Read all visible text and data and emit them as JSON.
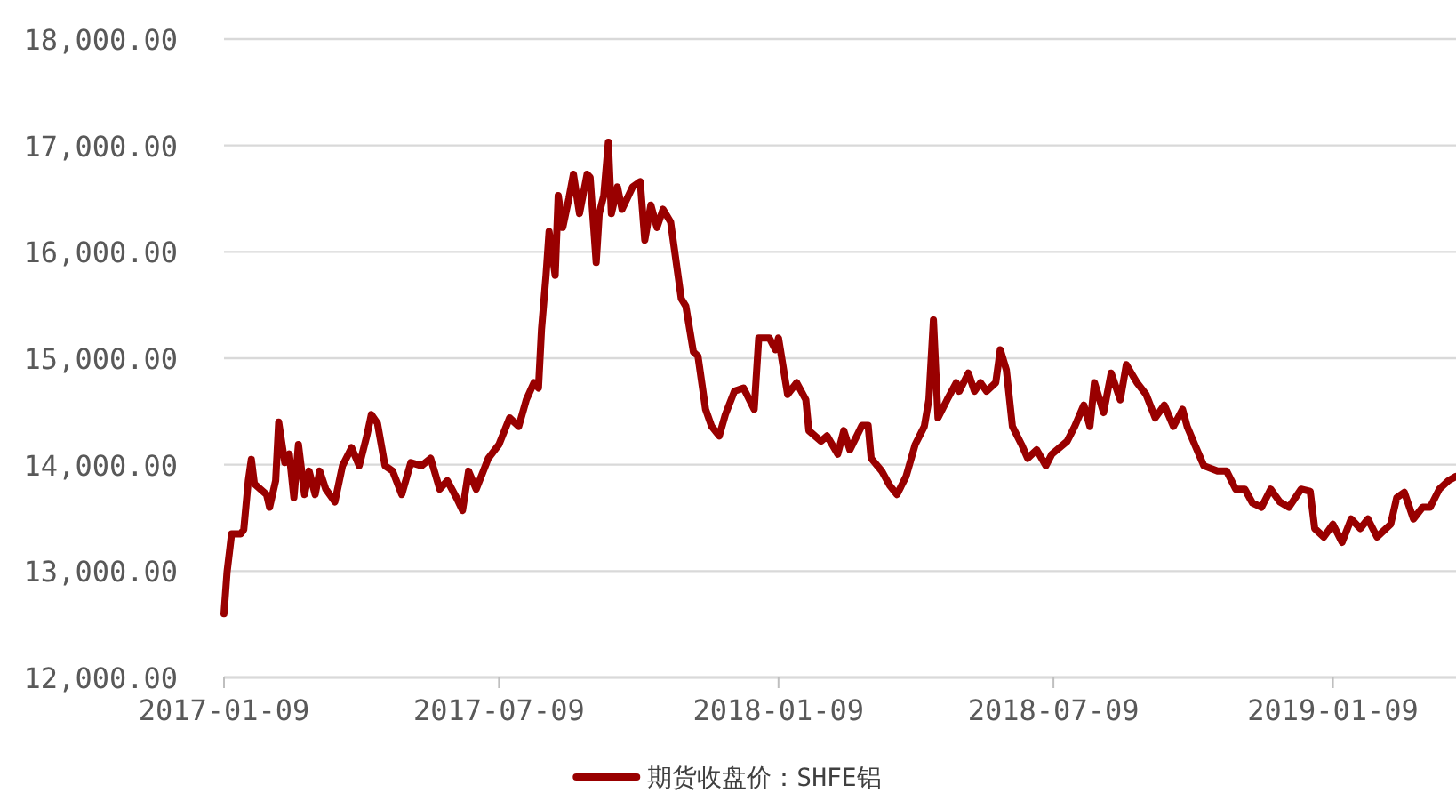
{
  "chart_data": {
    "type": "line",
    "x": [
      "2017-01-09",
      "2017-01-11",
      "2017-01-14",
      "2017-01-20",
      "2017-01-22",
      "2017-01-25",
      "2017-01-27",
      "2017-01-29",
      "2017-02-06",
      "2017-02-08",
      "2017-02-12",
      "2017-02-14",
      "2017-02-18",
      "2017-02-21",
      "2017-02-24",
      "2017-02-27",
      "2017-03-03",
      "2017-03-06",
      "2017-03-10",
      "2017-03-13",
      "2017-03-17",
      "2017-03-23",
      "2017-03-28",
      "2017-04-03",
      "2017-04-08",
      "2017-04-13",
      "2017-04-16",
      "2017-04-20",
      "2017-04-25",
      "2017-04-30",
      "2017-05-06",
      "2017-05-12",
      "2017-05-19",
      "2017-05-25",
      "2017-05-31",
      "2017-06-05",
      "2017-06-11",
      "2017-06-15",
      "2017-06-19",
      "2017-06-24",
      "2017-07-02",
      "2017-07-09",
      "2017-07-16",
      "2017-07-22",
      "2017-07-27",
      "2017-08-01",
      "2017-08-04",
      "2017-08-06",
      "2017-08-09",
      "2017-08-11",
      "2017-08-15",
      "2017-08-17",
      "2017-08-20",
      "2017-08-24",
      "2017-08-27",
      "2017-08-31",
      "2017-09-05",
      "2017-09-07",
      "2017-09-11",
      "2017-09-13",
      "2017-09-16",
      "2017-09-19",
      "2017-09-21",
      "2017-09-25",
      "2017-09-28",
      "2017-10-05",
      "2017-10-10",
      "2017-10-13",
      "2017-10-17",
      "2017-10-21",
      "2017-10-25",
      "2017-10-30",
      "2017-11-06",
      "2017-11-09",
      "2017-11-14",
      "2017-11-17",
      "2017-11-22",
      "2017-11-26",
      "2017-12-01",
      "2017-12-05",
      "2017-12-11",
      "2017-12-17",
      "2017-12-24",
      "2017-12-27",
      "2018-01-03",
      "2018-01-07",
      "2018-01-09",
      "2018-01-15",
      "2018-01-21",
      "2018-01-27",
      "2018-01-29",
      "2018-02-06",
      "2018-02-10",
      "2018-02-17",
      "2018-02-21",
      "2018-02-25",
      "2018-03-05",
      "2018-03-09",
      "2018-03-11",
      "2018-03-18",
      "2018-03-23",
      "2018-03-28",
      "2018-04-03",
      "2018-04-09",
      "2018-04-15",
      "2018-04-18",
      "2018-04-21",
      "2018-04-24",
      "2018-04-30",
      "2018-05-06",
      "2018-05-08",
      "2018-05-14",
      "2018-05-18",
      "2018-05-22",
      "2018-05-26",
      "2018-06-01",
      "2018-06-04",
      "2018-06-08",
      "2018-06-12",
      "2018-06-18",
      "2018-06-22",
      "2018-06-28",
      "2018-07-04",
      "2018-07-08",
      "2018-07-18",
      "2018-07-23",
      "2018-07-29",
      "2018-08-02",
      "2018-08-05",
      "2018-08-11",
      "2018-08-16",
      "2018-08-22",
      "2018-08-26",
      "2018-09-02",
      "2018-09-08",
      "2018-09-14",
      "2018-09-20",
      "2018-09-26",
      "2018-10-02",
      "2018-10-05",
      "2018-10-10",
      "2018-10-16",
      "2018-10-25",
      "2018-10-31",
      "2018-11-06",
      "2018-11-12",
      "2018-11-17",
      "2018-11-23",
      "2018-11-29",
      "2018-12-05",
      "2018-12-11",
      "2018-12-19",
      "2018-12-25",
      "2018-12-28",
      "2019-01-03",
      "2019-01-09",
      "2019-01-15",
      "2019-01-21",
      "2019-01-27",
      "2019-02-01",
      "2019-02-07",
      "2019-02-16",
      "2019-02-20",
      "2019-02-25",
      "2019-03-03",
      "2019-03-09",
      "2019-03-14",
      "2019-03-20",
      "2019-03-26",
      "2019-03-31"
    ],
    "series": [
      {
        "name": "期货收盘价：SHFE铝",
        "color": "#990000",
        "values": [
          12600,
          12990,
          13350,
          13350,
          13390,
          13850,
          14050,
          13820,
          13720,
          13600,
          13850,
          14400,
          14020,
          14100,
          13690,
          14190,
          13720,
          13940,
          13720,
          13940,
          13770,
          13650,
          13990,
          14160,
          13990,
          14270,
          14470,
          14390,
          13990,
          13940,
          13720,
          14020,
          13990,
          14060,
          13770,
          13850,
          13690,
          13570,
          13940,
          13770,
          14060,
          14190,
          14440,
          14360,
          14610,
          14770,
          14720,
          15270,
          15780,
          16190,
          15780,
          16530,
          16230,
          16500,
          16730,
          16360,
          16730,
          16700,
          15900,
          16360,
          16530,
          17030,
          16360,
          16610,
          16400,
          16610,
          16660,
          16110,
          16440,
          16230,
          16400,
          16280,
          15560,
          15490,
          15060,
          15020,
          14520,
          14360,
          14270,
          14470,
          14690,
          14720,
          14520,
          15190,
          15190,
          15080,
          15190,
          14660,
          14770,
          14610,
          14320,
          14220,
          14270,
          14100,
          14320,
          14140,
          14370,
          14370,
          14060,
          13940,
          13810,
          13720,
          13890,
          14190,
          14360,
          14610,
          15360,
          14440,
          14610,
          14770,
          14690,
          14860,
          14690,
          14770,
          14690,
          14770,
          15080,
          14890,
          14360,
          14190,
          14060,
          14140,
          13990,
          14100,
          14220,
          14360,
          14560,
          14360,
          14770,
          14490,
          14860,
          14610,
          14940,
          14770,
          14660,
          14440,
          14560,
          14360,
          14520,
          14360,
          14190,
          13990,
          13940,
          13940,
          13770,
          13770,
          13640,
          13600,
          13770,
          13650,
          13600,
          13770,
          13750,
          13400,
          13320,
          13440,
          13270,
          13490,
          13400,
          13490,
          13320,
          13440,
          13690,
          13740,
          13490,
          13600,
          13600,
          13770,
          13850,
          13890
        ]
      }
    ],
    "xlim": [
      "2017-01-09",
      "2019-03-31"
    ],
    "xticks": [
      "2017-01-09",
      "2017-07-09",
      "2018-01-09",
      "2018-07-09",
      "2019-01-09"
    ],
    "ylim": [
      12000,
      18000
    ],
    "yticks": [
      {
        "value": 12000,
        "label": "12,000.00"
      },
      {
        "value": 13000,
        "label": "13,000.00"
      },
      {
        "value": 14000,
        "label": "14,000.00"
      },
      {
        "value": 15000,
        "label": "15,000.00"
      },
      {
        "value": 16000,
        "label": "16,000.00"
      },
      {
        "value": 17000,
        "label": "17,000.00"
      },
      {
        "value": 18000,
        "label": "18,000.00"
      }
    ],
    "grid": "y",
    "legend": "bottom",
    "line_style": "solid",
    "marker": "none"
  }
}
